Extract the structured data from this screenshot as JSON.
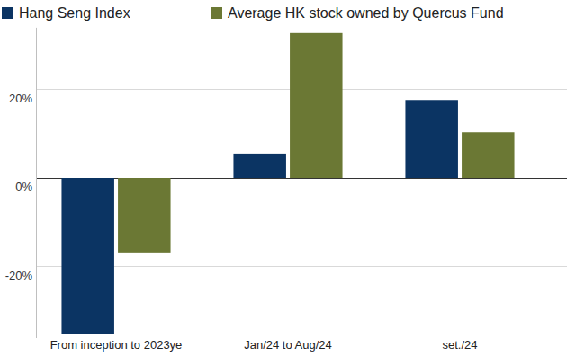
{
  "chart_data": {
    "type": "bar",
    "categories": [
      "From inception to 2023ye",
      "Jan/24 to Aug/24",
      "set./24"
    ],
    "series": [
      {
        "name": "Hang Seng Index",
        "color": "#0b3463",
        "values": [
          -35.1,
          5.5,
          17.6
        ]
      },
      {
        "name": "Average HK stock owned by Quercus Fund",
        "color": "#6b7834",
        "values": [
          -16.8,
          32.7,
          10.3
        ]
      }
    ],
    "ylim": [
      -36,
      34
    ],
    "yticks": [
      {
        "value": -20,
        "label": "-20%"
      },
      {
        "value": 0,
        "label": "0%"
      },
      {
        "value": 20,
        "label": "20%"
      }
    ],
    "grid": true,
    "legend": "top"
  }
}
